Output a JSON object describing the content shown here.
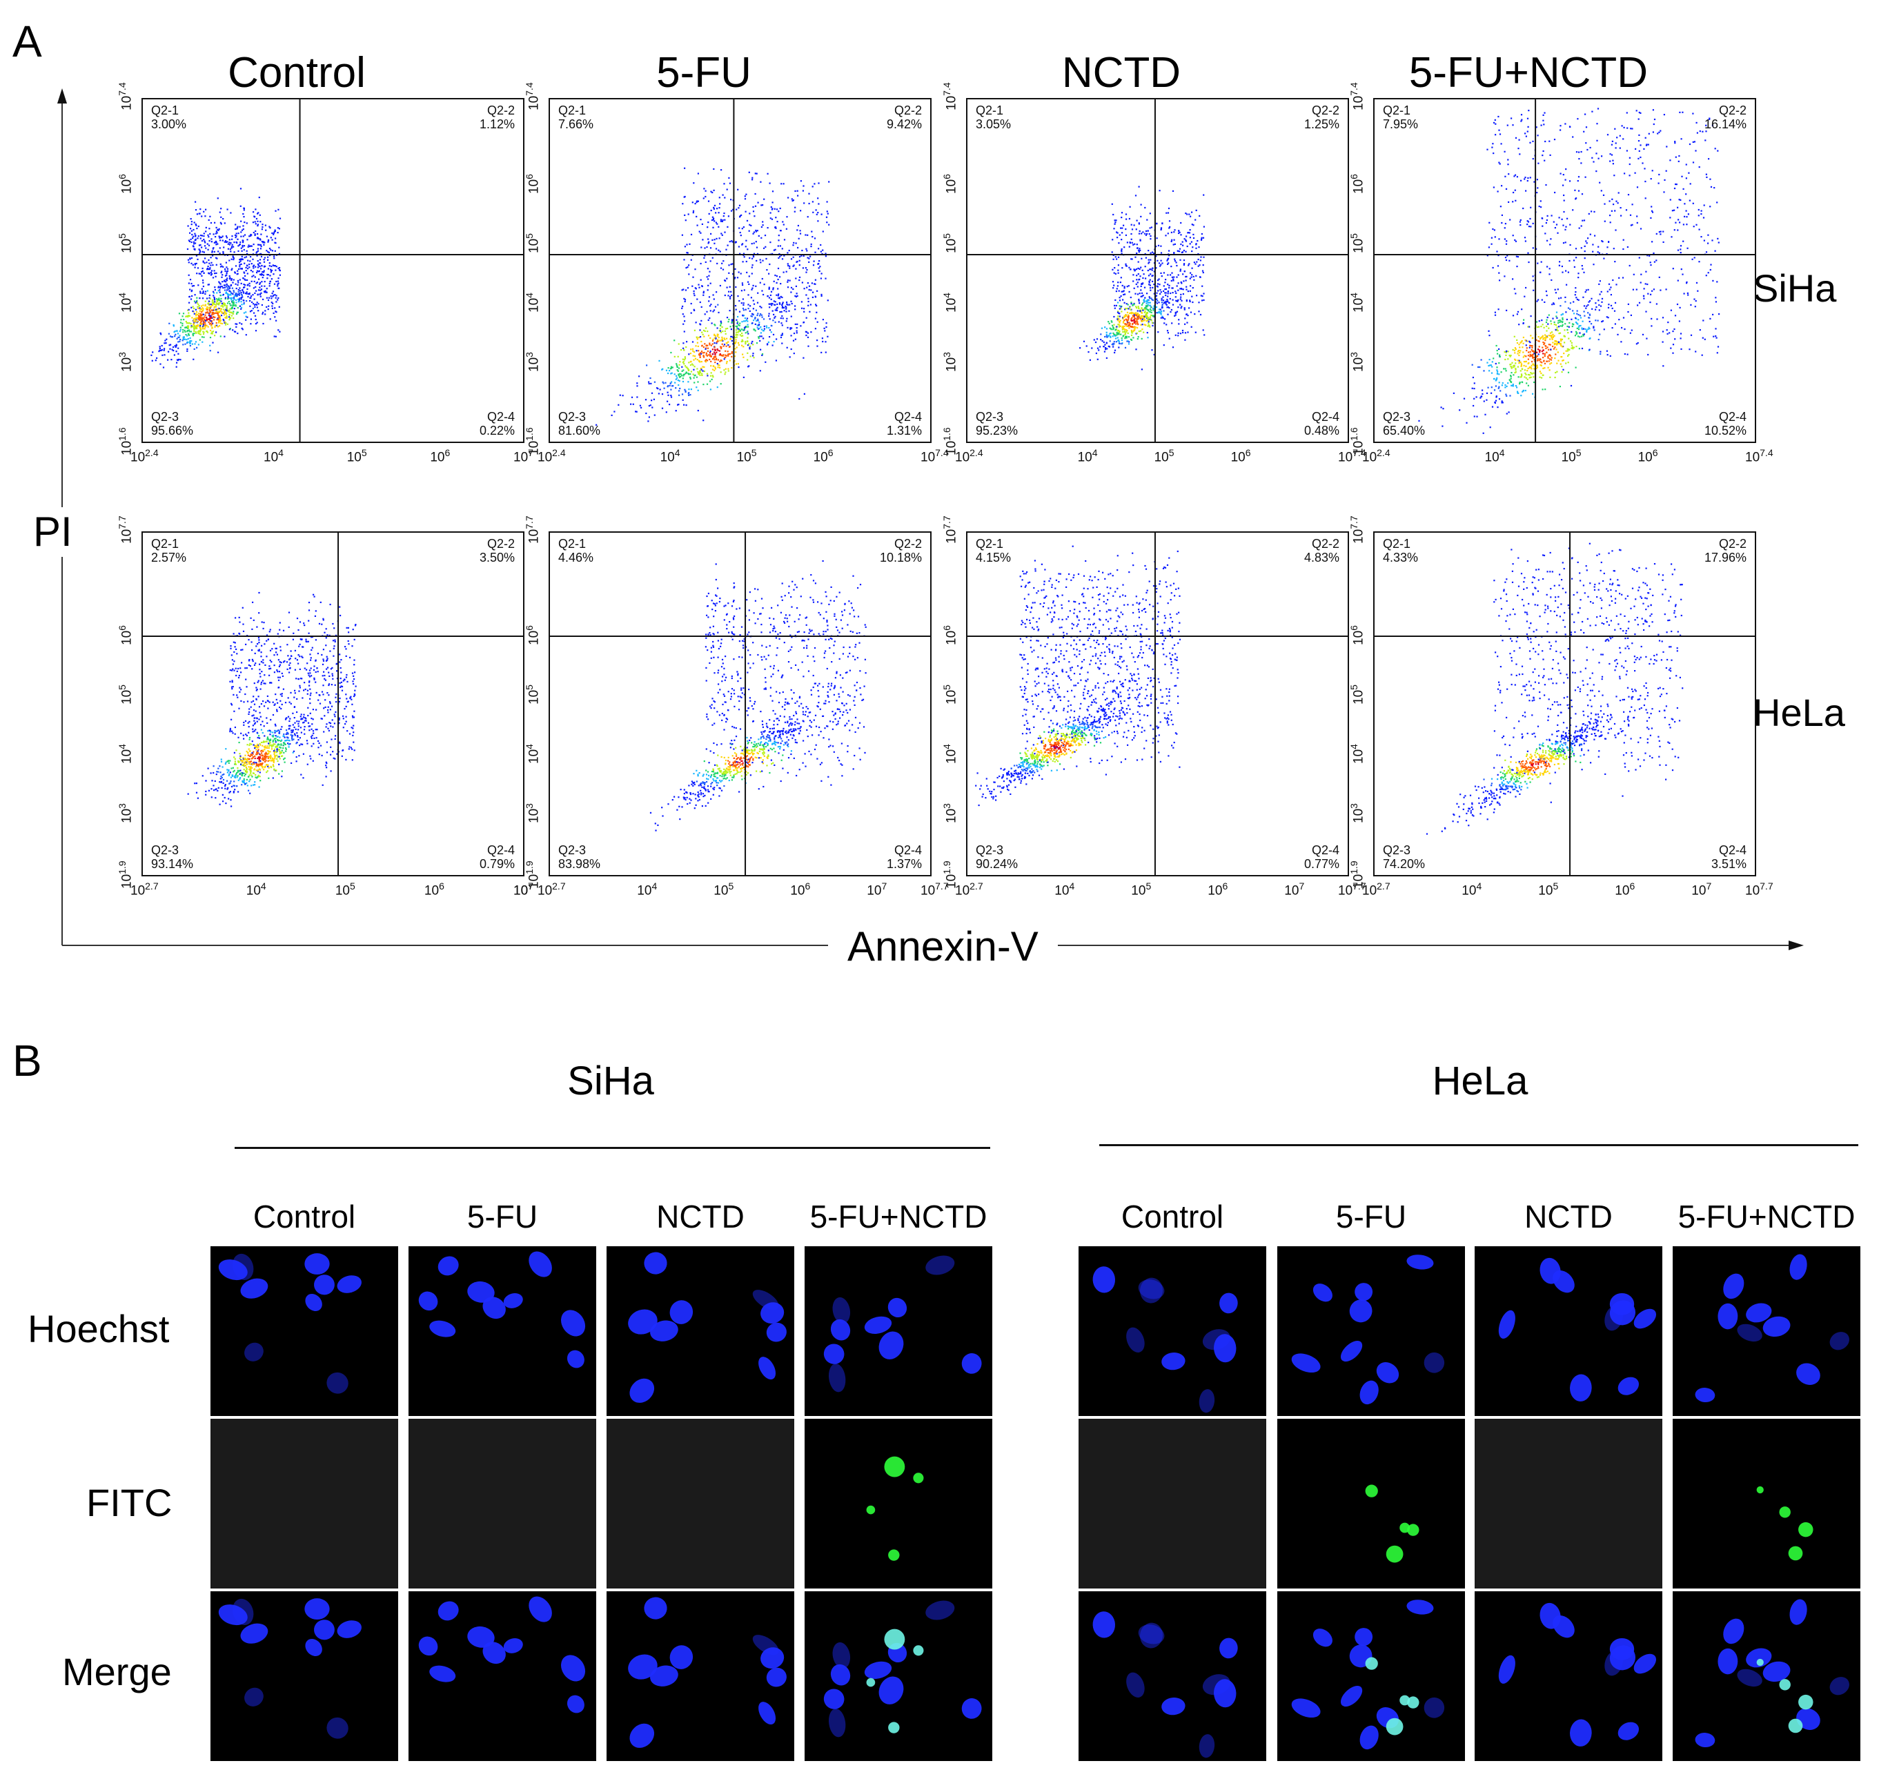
{
  "panel_a": {
    "letter": "A",
    "columns": [
      "Control",
      "5-FU",
      "NCTD",
      "5-FU+NCTD"
    ],
    "row_labels": [
      "SiHa",
      "HeLa"
    ],
    "y_axis_label": "PI",
    "x_axis_label": "Annexin-V",
    "quadrant_names": [
      "Q2-1",
      "Q2-2",
      "Q2-3",
      "Q2-4"
    ],
    "rows": [
      {
        "cell_line": "SiHa",
        "plots": [
          {
            "q1": "3.00%",
            "q2": "1.12%",
            "q3": "95.66%",
            "q4": "0.22%",
            "x_min": "10^2.4",
            "x_max": "10^7",
            "x_ticks": [
              "10^4",
              "10^5",
              "10^6"
            ],
            "y_min": "10^1.6",
            "y_max": "10^7.4",
            "y_ticks": [
              "10^3",
              "10^4",
              "10^5",
              "10^6"
            ]
          },
          {
            "q1": "7.66%",
            "q2": "9.42%",
            "q3": "81.60%",
            "q4": "1.31%",
            "x_min": "10^2.4",
            "x_max": "10^7.4",
            "x_ticks": [
              "10^4",
              "10^5",
              "10^6"
            ],
            "y_min": "10^1.6",
            "y_max": "10^7.4",
            "y_ticks": [
              "10^3",
              "10^4",
              "10^5",
              "10^6"
            ]
          },
          {
            "q1": "3.05%",
            "q2": "1.25%",
            "q3": "95.23%",
            "q4": "0.48%",
            "x_min": "10^2.4",
            "x_max": "10^7.4",
            "x_ticks": [
              "10^4",
              "10^5",
              "10^6"
            ],
            "y_min": "10^1.6",
            "y_max": "10^7.4",
            "y_ticks": [
              "10^3",
              "10^4",
              "10^5",
              "10^6"
            ]
          },
          {
            "q1": "7.95%",
            "q2": "16.14%",
            "q3": "65.40%",
            "q4": "10.52%",
            "x_min": "10^2.4",
            "x_max": "10^7.4",
            "x_ticks": [
              "10^4",
              "10^5",
              "10^6"
            ],
            "y_min": "10^1.6",
            "y_max": "10^7.4",
            "y_ticks": [
              "10^3",
              "10^4",
              "10^5",
              "10^6"
            ]
          }
        ]
      },
      {
        "cell_line": "HeLa",
        "plots": [
          {
            "q1": "2.57%",
            "q2": "3.50%",
            "q3": "93.14%",
            "q4": "0.79%",
            "x_min": "10^2.7",
            "x_max": "10^7",
            "x_ticks": [
              "10^4",
              "10^5",
              "10^6",
              "10^7"
            ],
            "y_min": "10^1.9",
            "y_max": "10^7.7",
            "y_ticks": [
              "10^3",
              "10^4",
              "10^5",
              "10^6"
            ]
          },
          {
            "q1": "4.46%",
            "q2": "10.18%",
            "q3": "83.98%",
            "q4": "1.37%",
            "x_min": "10^2.7",
            "x_max": "10^7.7",
            "x_ticks": [
              "10^4",
              "10^5",
              "10^6",
              "10^7"
            ],
            "y_min": "10^1.9",
            "y_max": "10^7.7",
            "y_ticks": [
              "10^3",
              "10^4",
              "10^5",
              "10^6"
            ]
          },
          {
            "q1": "4.15%",
            "q2": "4.83%",
            "q3": "90.24%",
            "q4": "0.77%",
            "x_min": "10^2.7",
            "x_max": "10^7.7",
            "x_ticks": [
              "10^4",
              "10^5",
              "10^6",
              "10^7"
            ],
            "y_min": "10^1.9",
            "y_max": "10^7.7",
            "y_ticks": [
              "10^3",
              "10^4",
              "10^5",
              "10^6"
            ]
          },
          {
            "q1": "4.33%",
            "q2": "17.96%",
            "q3": "74.20%",
            "q4": "3.51%",
            "x_min": "10^2.7",
            "x_max": "10^7.7",
            "x_ticks": [
              "10^4",
              "10^5",
              "10^6",
              "10^7"
            ],
            "y_min": "10^1.9",
            "y_max": "10^7.7",
            "y_ticks": [
              "10^3",
              "10^4",
              "10^5",
              "10^6"
            ]
          }
        ]
      }
    ]
  },
  "panel_b": {
    "letter": "B",
    "groups": [
      {
        "title": "SiHa",
        "columns": [
          "Control",
          "5-FU",
          "NCTD",
          "5-FU+NCTD"
        ]
      },
      {
        "title": "HeLa",
        "columns": [
          "Control",
          "5-FU",
          "NCTD",
          "5-FU+NCTD"
        ]
      }
    ],
    "row_labels": [
      "Hoechst",
      "FITC",
      "Merge"
    ],
    "fitc_positive": [
      [
        false,
        false,
        false,
        true
      ],
      [
        false,
        true,
        false,
        true
      ]
    ],
    "colors": {
      "nucleus": "#1f2cff",
      "fitc": "#2dff3a",
      "background": "#000000",
      "empty": "#1b1b1b"
    }
  }
}
